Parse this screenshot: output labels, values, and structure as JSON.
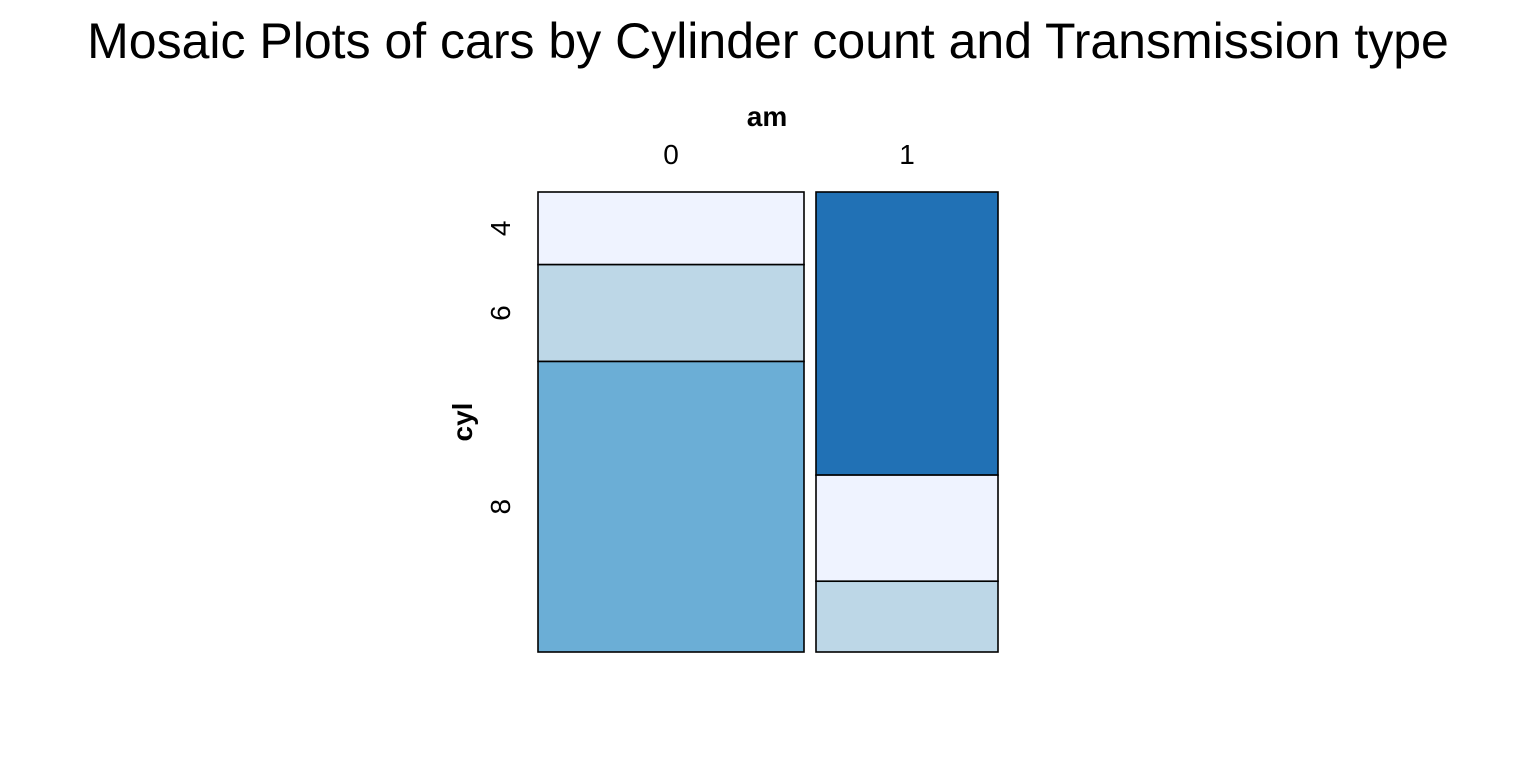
{
  "chart_data": {
    "type": "mosaic",
    "title": "Mosaic Plots of cars by Cylinder count and Transmission type",
    "xlabel": "am",
    "ylabel": "cyl",
    "column_categories": [
      "0",
      "1"
    ],
    "row_tick_labels": [
      "4",
      "6",
      "8"
    ],
    "column_counts": [
      19,
      13
    ],
    "columns": [
      {
        "name": "0",
        "cells": [
          {
            "cyl": "4",
            "count": 3,
            "color": "#eff3ff"
          },
          {
            "cyl": "6",
            "count": 4,
            "color": "#bdd7e7"
          },
          {
            "cyl": "8",
            "count": 12,
            "color": "#6baed6"
          }
        ]
      },
      {
        "name": "1",
        "cells": [
          {
            "cyl": "4",
            "count": 8,
            "color": "#2171b5"
          },
          {
            "cyl": "6",
            "count": 3,
            "color": "#eff3ff"
          },
          {
            "cyl": "8",
            "count": 2,
            "color": "#bdd7e7"
          }
        ]
      }
    ],
    "border_color": "#000000"
  }
}
